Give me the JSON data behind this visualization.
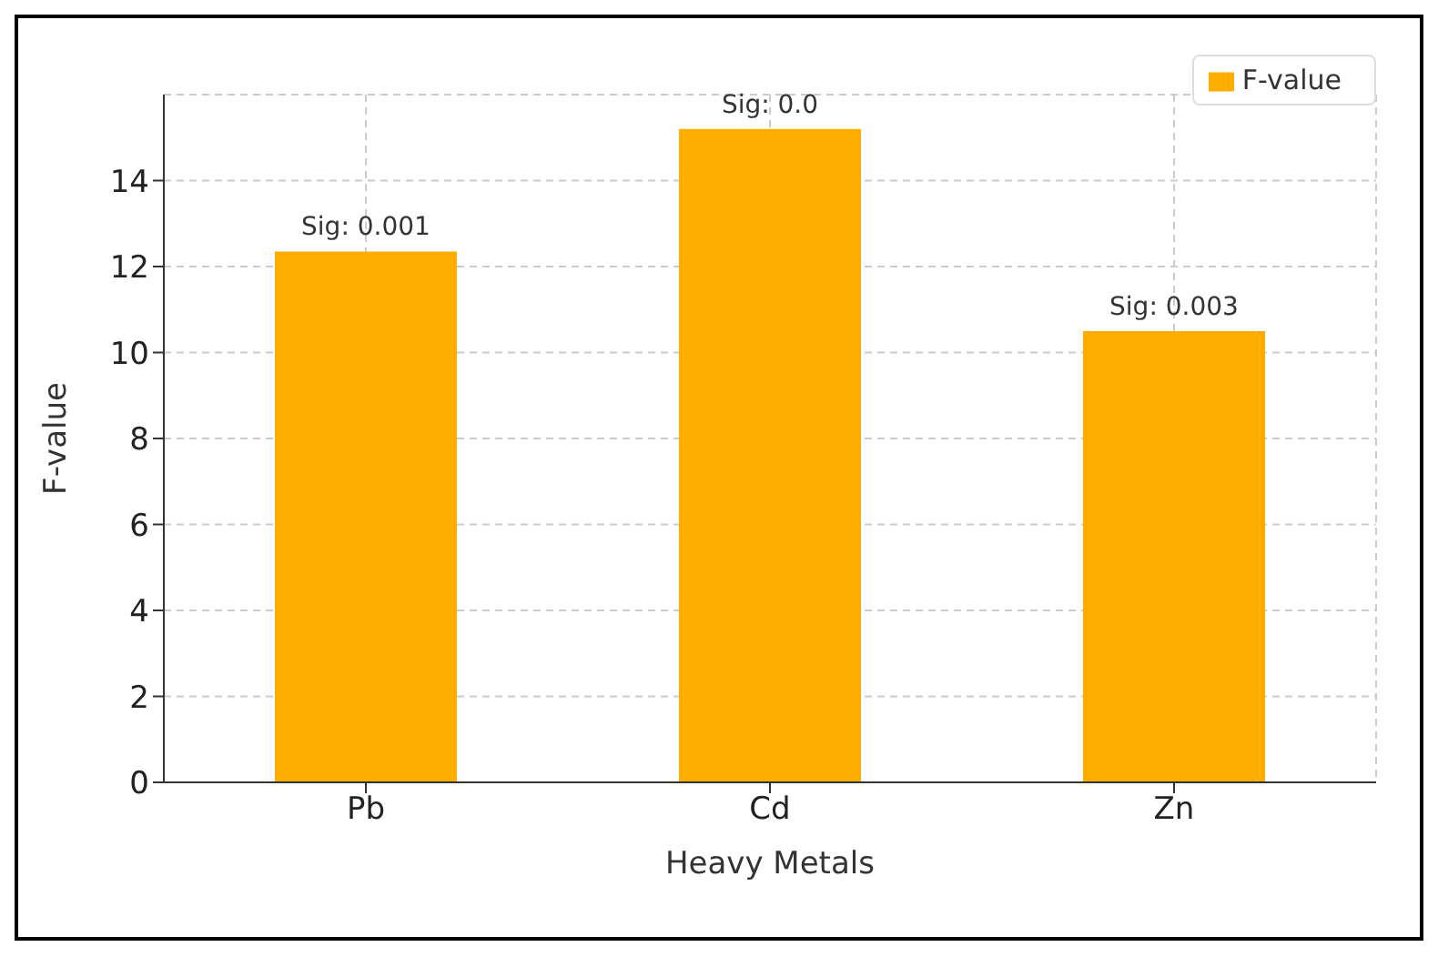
{
  "chart_data": {
    "type": "bar",
    "xlabel": "Heavy Metals",
    "ylabel": "F-value",
    "categories": [
      "Pb",
      "Cd",
      "Zn"
    ],
    "series": [
      {
        "name": "F-value",
        "color": "#ffae00",
        "values": [
          12.35,
          15.2,
          10.5
        ]
      }
    ],
    "annotations": [
      {
        "text": "Sig: 0.001",
        "x": "Pb",
        "y": 12.35
      },
      {
        "text": "Sig: 0.0",
        "x": "Cd",
        "y": 15.2
      },
      {
        "text": "Sig: 0.003",
        "x": "Zn",
        "y": 10.5
      }
    ],
    "ylim": [
      0,
      16
    ],
    "yticks": [
      0,
      2,
      4,
      6,
      8,
      10,
      12,
      14
    ],
    "grid": true,
    "legend": "top right"
  }
}
